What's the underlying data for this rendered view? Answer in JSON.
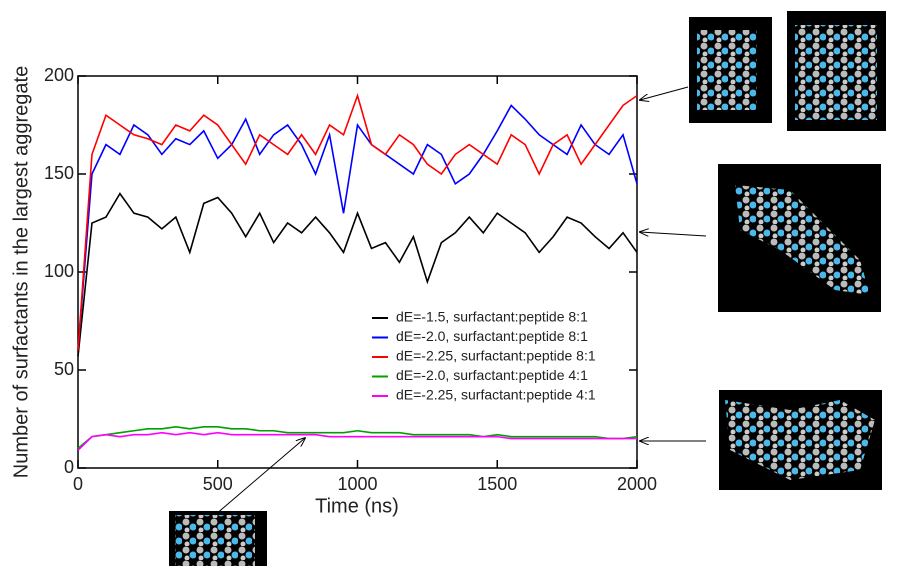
{
  "chart_data": {
    "type": "line",
    "xlabel": "Time (ns)",
    "ylabel": "Number of surfactants in the largest aggregate",
    "xlim": [
      0,
      2000
    ],
    "ylim": [
      0,
      200
    ],
    "xticks": [
      0,
      500,
      1000,
      1500,
      2000
    ],
    "yticks": [
      0,
      50,
      100,
      150,
      200
    ],
    "x": [
      0,
      50,
      100,
      150,
      200,
      250,
      300,
      350,
      400,
      450,
      500,
      550,
      600,
      650,
      700,
      750,
      800,
      850,
      900,
      950,
      1000,
      1050,
      1100,
      1150,
      1200,
      1250,
      1300,
      1350,
      1400,
      1450,
      1500,
      1550,
      1600,
      1650,
      1700,
      1750,
      1800,
      1850,
      1900,
      1950,
      2000
    ],
    "series": [
      {
        "name": "dE=-1.5, surfactant:peptide 8:1",
        "color": "#000000",
        "values": [
          57,
          125,
          128,
          140,
          130,
          128,
          122,
          128,
          110,
          135,
          138,
          130,
          118,
          130,
          115,
          125,
          120,
          128,
          120,
          110,
          130,
          112,
          115,
          105,
          118,
          95,
          115,
          120,
          128,
          120,
          130,
          125,
          120,
          110,
          118,
          128,
          125,
          118,
          112,
          120,
          110
        ]
      },
      {
        "name": "dE=-2.0, surfactant:peptide 8:1",
        "color": "#0000ff",
        "values": [
          60,
          150,
          165,
          160,
          175,
          170,
          160,
          168,
          165,
          172,
          158,
          165,
          178,
          160,
          170,
          175,
          165,
          150,
          170,
          130,
          175,
          165,
          160,
          155,
          150,
          165,
          160,
          145,
          150,
          160,
          172,
          185,
          178,
          170,
          165,
          160,
          175,
          165,
          160,
          170,
          145
        ]
      },
      {
        "name": "dE=-2.25, surfactant:peptide 8:1",
        "color": "#ff0000",
        "values": [
          60,
          160,
          180,
          175,
          170,
          168,
          165,
          175,
          172,
          180,
          175,
          165,
          155,
          170,
          165,
          160,
          170,
          160,
          175,
          170,
          190,
          165,
          160,
          170,
          165,
          155,
          150,
          160,
          165,
          160,
          155,
          170,
          165,
          150,
          165,
          170,
          155,
          165,
          175,
          185,
          190
        ]
      },
      {
        "name": "dE=-2.0, surfactant:peptide 4:1",
        "color": "#00a000",
        "values": [
          10,
          16,
          17,
          18,
          19,
          20,
          20,
          21,
          20,
          21,
          21,
          20,
          20,
          19,
          19,
          18,
          18,
          18,
          18,
          18,
          19,
          18,
          18,
          18,
          17,
          17,
          17,
          17,
          17,
          16,
          17,
          16,
          16,
          16,
          16,
          16,
          16,
          16,
          15,
          15,
          16
        ]
      },
      {
        "name": "dE=-2.25, surfactant:peptide 4:1",
        "color": "#ff00ff",
        "values": [
          9,
          16,
          17,
          16,
          17,
          17,
          18,
          17,
          18,
          17,
          18,
          17,
          17,
          17,
          17,
          17,
          17,
          17,
          16,
          16,
          16,
          16,
          16,
          16,
          16,
          16,
          16,
          16,
          16,
          16,
          16,
          15,
          15,
          15,
          15,
          15,
          15,
          15,
          15,
          15,
          15
        ]
      }
    ]
  }
}
